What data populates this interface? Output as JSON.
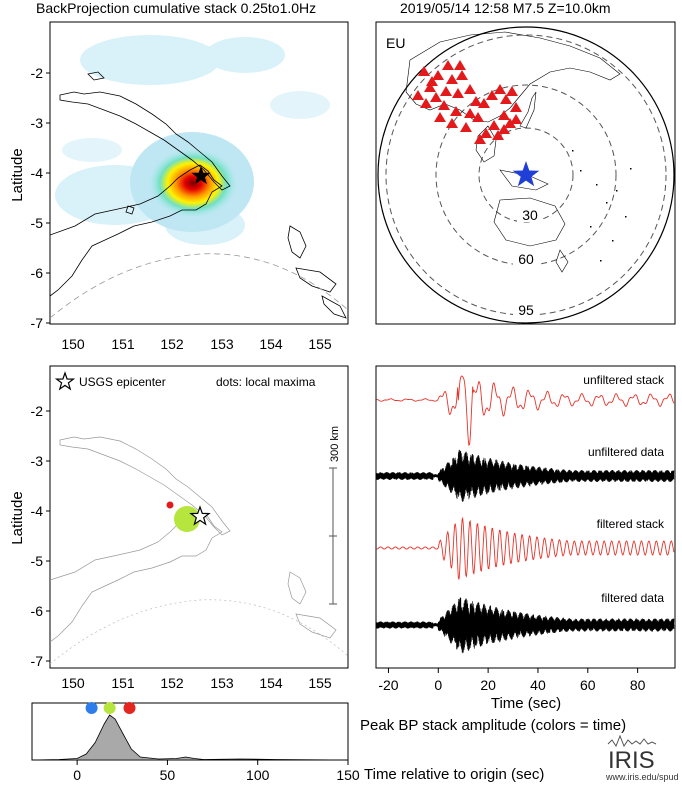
{
  "header": {
    "left_title": "BackProjection cumulative stack 0.25to1.0Hz",
    "right_title": "2019/05/14 12:58  M7.5  Z=10.0km"
  },
  "colors": {
    "station": "#e31a1c",
    "epicenter_globe": "#1f3fd6",
    "unfiltered": "#e8332a",
    "dot_blue": "#2f7dea",
    "dot_green": "#b6e63e",
    "dot_red": "#e3261f",
    "dot_local": "#e31a1c",
    "histogram_fill": "#a9a9a9"
  },
  "map_top": {
    "ylabel": "Latitude",
    "yticks": [
      "-2",
      "-3",
      "-4",
      "-5",
      "-6",
      "-7"
    ],
    "xticks": [
      "150",
      "151",
      "152",
      "153",
      "154",
      "155"
    ]
  },
  "globe": {
    "label": "EU",
    "ring_labels": [
      "30",
      "60",
      "95"
    ]
  },
  "map_bottom": {
    "ylabel": "Latitude",
    "yticks": [
      "-2",
      "-3",
      "-4",
      "-5",
      "-6",
      "-7"
    ],
    "xticks": [
      "150",
      "151",
      "152",
      "153",
      "154",
      "155"
    ],
    "legend_epicenter": "USGS epicenter",
    "legend_dots": "dots: local maxima",
    "scale_label": "300 km"
  },
  "chart_data": [
    {
      "type": "line",
      "xlabel": "Time (sec)",
      "xticks": [
        "-20",
        "0",
        "20",
        "40",
        "60",
        "80"
      ],
      "xlim": [
        -25,
        95
      ],
      "series": [
        {
          "name": "unfiltered stack"
        },
        {
          "name": "unfiltered data"
        },
        {
          "name": "filtered stack"
        },
        {
          "name": "filtered data"
        }
      ]
    },
    {
      "type": "area",
      "xlabel": "Time relative to origin (sec)",
      "title": "Peak BP stack amplitude (colors = time)",
      "xticks": [
        "0",
        "50",
        "100",
        "150"
      ],
      "xlim": [
        -25,
        150
      ],
      "x": [
        -25,
        -10,
        0,
        5,
        10,
        15,
        18,
        21,
        25,
        30,
        35,
        45,
        55,
        60,
        65,
        70,
        90,
        110,
        150
      ],
      "values": [
        0.0,
        0.01,
        0.03,
        0.12,
        0.35,
        0.72,
        0.9,
        0.82,
        0.55,
        0.22,
        0.06,
        0.02,
        0.03,
        0.06,
        0.03,
        0.01,
        0.02,
        0.01,
        0.0
      ],
      "peak_dots": [
        {
          "x": 8,
          "color": "#2f7dea"
        },
        {
          "x": 18,
          "color": "#b6e63e"
        },
        {
          "x": 29,
          "color": "#e3261f"
        }
      ]
    }
  ],
  "logo": {
    "text": "IRIS",
    "url_text": "www.iris.edu/spud"
  }
}
